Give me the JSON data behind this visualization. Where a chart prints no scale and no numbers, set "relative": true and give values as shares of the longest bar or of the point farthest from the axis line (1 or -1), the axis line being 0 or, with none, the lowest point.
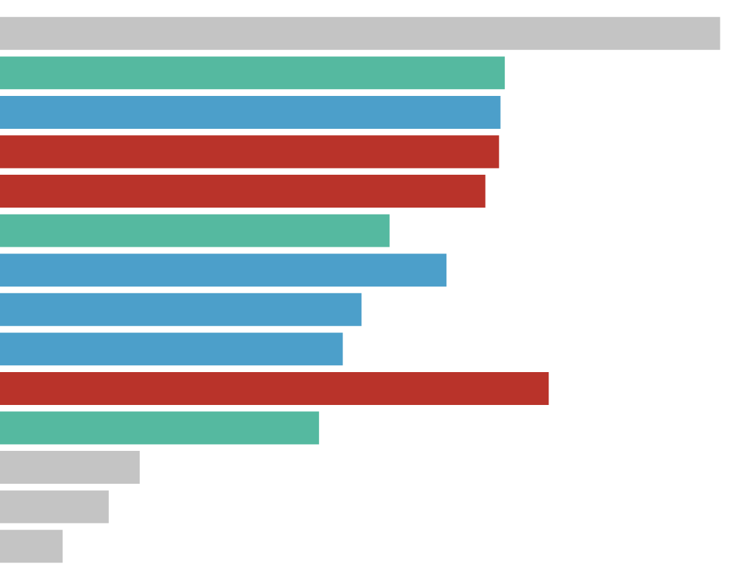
{
  "chart_data": {
    "type": "bar",
    "orientation": "horizontal",
    "relative": true,
    "categories": [
      null,
      null,
      null,
      null,
      null,
      null,
      null,
      null,
      null,
      null,
      null,
      null,
      null,
      null
    ],
    "values": [
      1,
      0.701,
      0.695,
      0.693,
      0.674,
      0.541,
      0.62,
      0.502,
      0.476,
      0.762,
      0.443,
      0.194,
      0.151,
      0.087
    ],
    "colors": [
      "#c4c4c4",
      "#55b9a0",
      "#4c9fca",
      "#b9332a",
      "#b9332a",
      "#55b9a0",
      "#4c9fca",
      "#4c9fca",
      "#4c9fca",
      "#b9332a",
      "#55b9a0",
      "#c4c4c4",
      "#c4c4c4",
      "#c4c4c4"
    ],
    "legend": false
  }
}
